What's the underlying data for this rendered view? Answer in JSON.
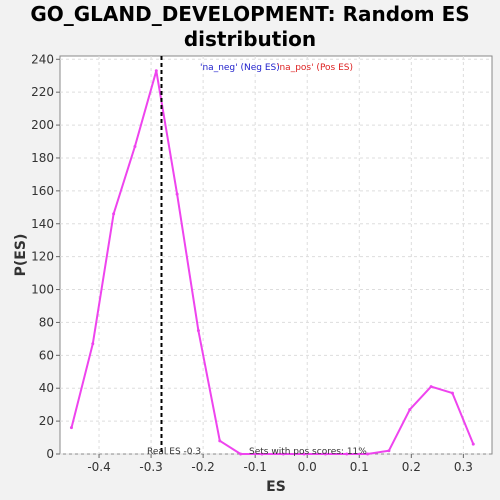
{
  "chart_data": {
    "type": "line",
    "title_lines": [
      "GO_GLAND_DEVELOPMENT: Random ES",
      "distribution"
    ],
    "xlabel": "ES",
    "ylabel": "P(ES)",
    "xlim": [
      -0.475,
      0.355
    ],
    "ylim": [
      0,
      242
    ],
    "xticks": [
      -0.4,
      -0.3,
      -0.2,
      -0.1,
      0.0,
      0.1,
      0.2,
      0.3
    ],
    "xtick_labels": [
      "-0.4",
      "-0.3",
      "-0.2",
      "-0.1",
      "0.0",
      "0.1",
      "0.2",
      "0.3"
    ],
    "yticks": [
      0,
      20,
      40,
      60,
      80,
      100,
      120,
      140,
      160,
      180,
      200,
      220,
      240
    ],
    "ytick_labels": [
      "0",
      "20",
      "40",
      "60",
      "80",
      "100",
      "120",
      "140",
      "160",
      "180",
      "200",
      "220",
      "240"
    ],
    "grid": true,
    "series": [
      {
        "color": "#ee44ee",
        "x": [
          -0.453,
          -0.412,
          -0.372,
          -0.331,
          -0.29,
          -0.25,
          -0.209,
          -0.168,
          -0.128,
          -0.087,
          -0.046,
          -0.006,
          0.035,
          0.076,
          0.116,
          0.157,
          0.197,
          0.238,
          0.279,
          0.319
        ],
        "y": [
          16,
          67,
          146,
          187,
          233,
          158,
          75,
          8,
          0,
          0,
          0,
          0,
          0,
          0,
          0,
          2,
          27,
          41,
          37,
          6
        ]
      }
    ],
    "real_es": -0.28,
    "annotations": {
      "legend_neg": "'na_neg' (Neg ES)",
      "legend_pos": "'na_pos' (Pos ES)",
      "real_es_label": "Real ES -0.3",
      "pos_scores_label": "Sets with pos scores: 11%"
    },
    "colors": {
      "line": "#ee44ee",
      "neg": "#2222cc",
      "pos": "#dd2222",
      "grid": "#dddddd"
    }
  }
}
